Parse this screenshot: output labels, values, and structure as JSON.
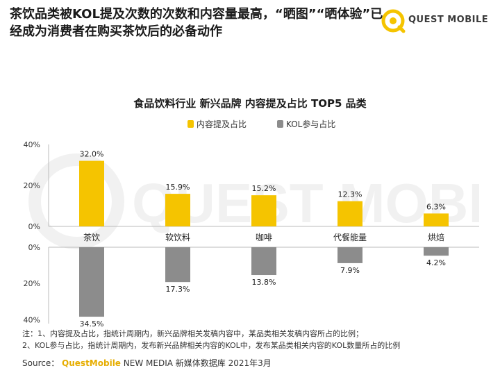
{
  "headline": "茶饮品类被KOL提及次数的次数和内容量最高，“晒图”“晒体验”已经成为消费者在购买茶饮后的必备动作",
  "brand": {
    "name": "QUEST MOBILE",
    "accent": "#F5C400"
  },
  "watermark_text": "QUEST MOBILE",
  "chart_data": {
    "type": "bar",
    "title": "食品饮料行业 新兴品牌 内容提及占比 TOP5 品类",
    "categories": [
      "茶饮",
      "软饮料",
      "咖啡",
      "代餐能量",
      "烘焙"
    ],
    "series": [
      {
        "name": "内容提及占比",
        "values": [
          32.0,
          15.9,
          15.2,
          12.3,
          6.3
        ],
        "color": "#F5C400",
        "direction": "up"
      },
      {
        "name": "KOL参与占比",
        "values": [
          34.5,
          17.3,
          13.8,
          7.9,
          4.2
        ],
        "color": "#8C8C8C",
        "direction": "down"
      }
    ],
    "upper_ticks": [
      "40%",
      "20%",
      "0%"
    ],
    "lower_ticks": [
      "0%",
      "20%",
      "40%"
    ],
    "ylim": [
      0,
      40
    ],
    "value_suffix": "%",
    "legend_position": "top"
  },
  "notes": [
    "注：1、内容提及占比，指统计周期内，新兴品牌相关发稿内容中，某品类相关发稿内容所占的比例；",
    "2、KOL参与占比，指统计周期内，发布新兴品牌相关内容的KOL中，发布某品类相关内容的KOL数量所占的比例"
  ],
  "source": {
    "label": "Source：",
    "brand": "QuestMobile",
    "rest": " NEW MEDIA 新媒体数据库 2021年3月"
  }
}
